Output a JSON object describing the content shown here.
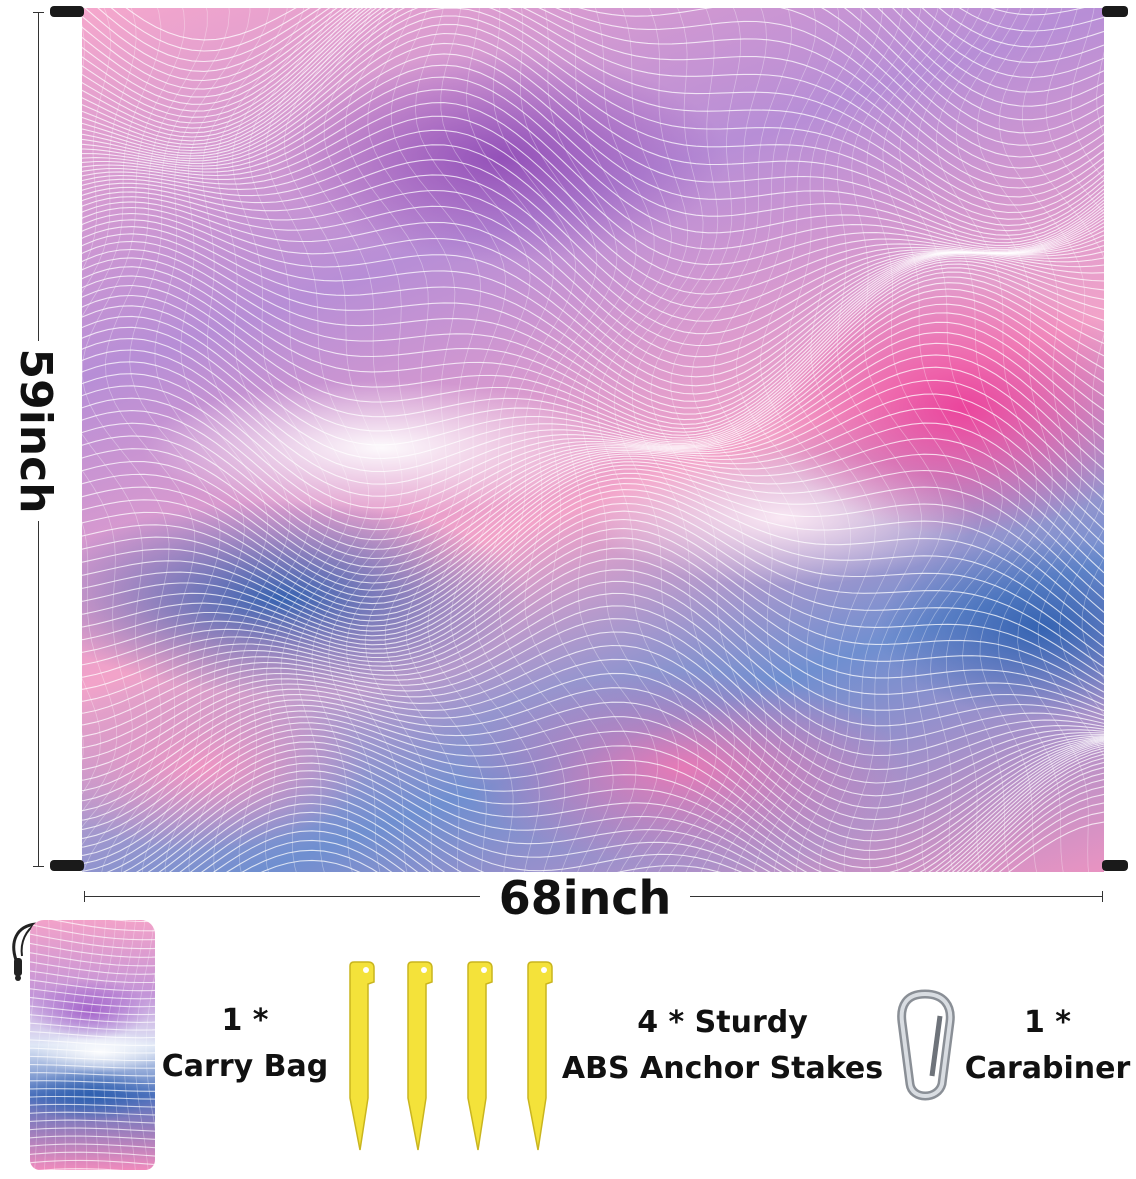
{
  "dimensions": {
    "height_label": "59inch",
    "width_label": "68inch"
  },
  "accessories": [
    {
      "line1": "1 *",
      "line2": "Carry Bag"
    },
    {
      "line1": "4 * Sturdy",
      "line2": "ABS Anchor Stakes"
    },
    {
      "line1": "1 *",
      "line2": "Carabiner"
    }
  ],
  "colors": {
    "pink": "#ec409a",
    "purple": "#8c46b4",
    "blue": "#2d5faf",
    "stake_yellow": "#f4e23a",
    "pole": "#1a1a1a"
  },
  "icons": [
    "carry-bag-icon",
    "ground-stake-icon",
    "carabiner-icon"
  ]
}
